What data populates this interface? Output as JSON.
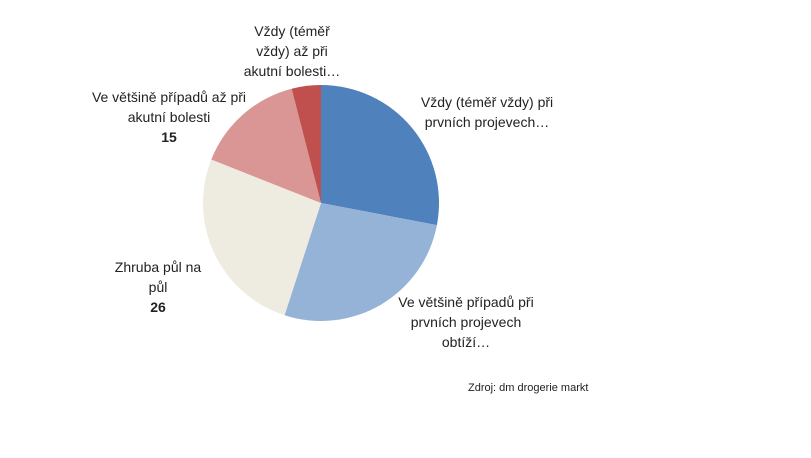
{
  "chart_data": {
    "type": "pie",
    "categories": [
      "Vždy (téměř vždy) při prvních projevech…",
      "Ve většině případů při prvních projevech obtíží…",
      "Zhruba půl na půl",
      "Ve většině případů až při akutní bolesti",
      "Vždy (téměř vždy) až při akutní bolesti…"
    ],
    "values": [
      28,
      27,
      26,
      15,
      4
    ],
    "colors": [
      "#4f81bd",
      "#95b3d7",
      "#eeece1",
      "#d99694",
      "#c0504d"
    ],
    "source": "Zdroj: dm drogerie markt"
  }
}
